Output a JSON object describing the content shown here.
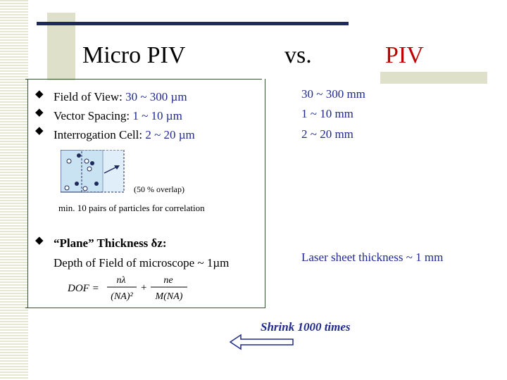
{
  "title": {
    "left": "Micro PIV",
    "middle": "vs.",
    "right": "PIV"
  },
  "micro": {
    "items": [
      {
        "label": "Field of View: ",
        "value": "30 ~ 300 µm"
      },
      {
        "label": "Vector Spacing: ",
        "value": "1 ~ 10 µm"
      },
      {
        "label": "Interrogation Cell: ",
        "value": "2 ~ 20 µm"
      }
    ],
    "overlap_note": "(50 % overlap)",
    "pairs_note": "min. 10 pairs of particles for correlation",
    "plane_title": "“Plane” Thickness δz:",
    "plane_sub": "Depth of Field of microscope ~ 1µm",
    "formula": {
      "lhs": "DOF =",
      "num1": "nλ",
      "den1": "(NA)²",
      "plus": "+",
      "num2": "ne",
      "den2": "M(NA)"
    }
  },
  "piv": {
    "items": [
      "30 ~ 300 mm",
      "1 ~ 10 mm",
      "2 ~ 20 mm"
    ],
    "laser": "Laser sheet thickness ~ 1 mm"
  },
  "shrink_label": "Shrink 1000 times",
  "colors": {
    "accent_red": "#c00000",
    "text_blue": "#1f2a8c",
    "cell_fill": "#c9e3f3",
    "navy": "#1f2a5c",
    "olive": "#dfe0c9"
  }
}
